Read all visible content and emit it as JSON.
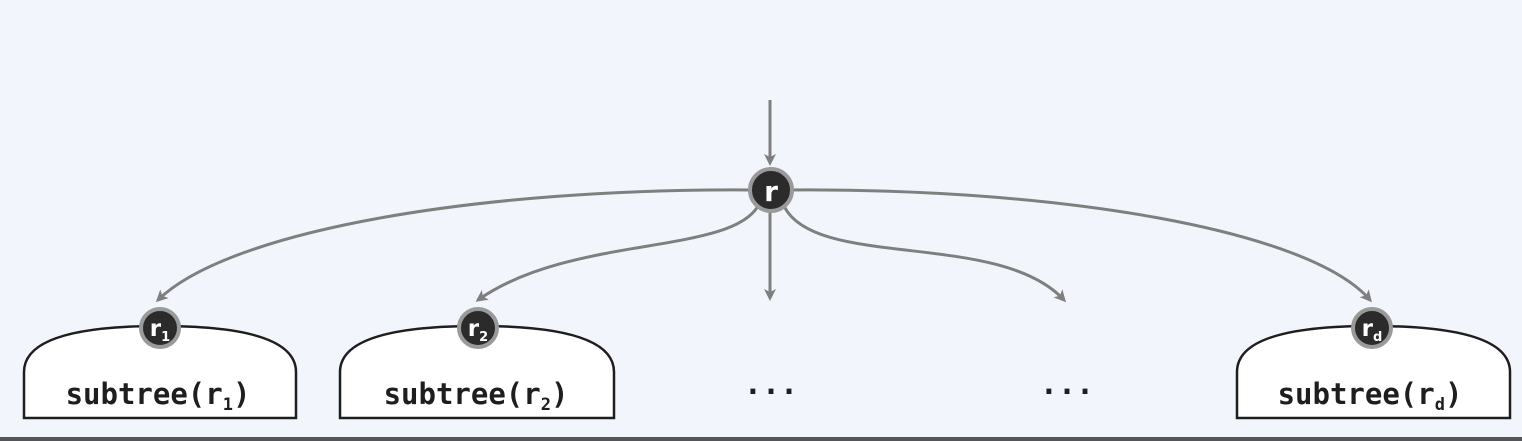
{
  "diagram": {
    "root": {
      "label": "r"
    },
    "subtrees": [
      {
        "root_base": "r",
        "root_sub": "1",
        "label_prefix": "subtree(",
        "label_base": "r",
        "label_sub": "1",
        "label_suffix": ")"
      },
      {
        "root_base": "r",
        "root_sub": "2",
        "label_prefix": "subtree(",
        "label_base": "r",
        "label_sub": "2",
        "label_suffix": ")"
      },
      {
        "root_base": "r",
        "root_sub": "d",
        "label_prefix": "subtree(",
        "label_base": "r",
        "label_sub": "d",
        "label_suffix": ")"
      }
    ],
    "ellipses": [
      "···",
      "···"
    ]
  },
  "colors": {
    "background": "#f2f6fc",
    "edge": "#7f7f7f",
    "node_fill": "#2b2b2b",
    "node_ring": "#9a9a9a",
    "subtree_fill": "#ffffff",
    "subtree_stroke": "#1e1e1e",
    "text": "#1e1e1e",
    "bottom_rule": "#555555"
  }
}
